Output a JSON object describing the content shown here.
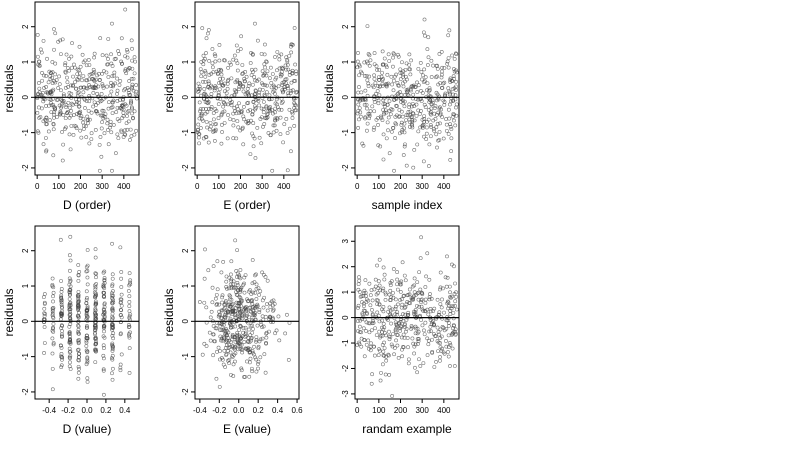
{
  "chart_data": [
    {
      "type": "scatter",
      "xlabel": "D (order)",
      "ylabel": "residuals",
      "xlim": [
        -10,
        470
      ],
      "ylim": [
        -2.2,
        2.7
      ],
      "xticks": [
        "0",
        "100",
        "200",
        "300",
        "400"
      ],
      "xtick_values": [
        0,
        100,
        200,
        300,
        400
      ],
      "yticks": [
        "-2",
        "-1",
        "0",
        "1",
        "2"
      ],
      "ytick_values": [
        -2,
        -1,
        0,
        1,
        2
      ],
      "hline": 0,
      "n_points": 460,
      "x_range": [
        0,
        460
      ],
      "y_spread": 0.72,
      "seed": 11,
      "point_color": "#444444"
    },
    {
      "type": "scatter",
      "xlabel": "E (order)",
      "ylabel": "residuals",
      "xlim": [
        -10,
        470
      ],
      "ylim": [
        -2.2,
        2.7
      ],
      "xticks": [
        "0",
        "100",
        "200",
        "300",
        "400"
      ],
      "xtick_values": [
        0,
        100,
        200,
        300,
        400
      ],
      "yticks": [
        "-2",
        "-1",
        "0",
        "1",
        "2"
      ],
      "ytick_values": [
        -2,
        -1,
        0,
        1,
        2
      ],
      "hline": 0,
      "n_points": 460,
      "x_range": [
        0,
        460
      ],
      "y_spread": 0.72,
      "seed": 23,
      "point_color": "#444444"
    },
    {
      "type": "scatter",
      "xlabel": "sample index",
      "ylabel": "residuals",
      "xlim": [
        -10,
        470
      ],
      "ylim": [
        -2.2,
        2.7
      ],
      "xticks": [
        "0",
        "100",
        "200",
        "300",
        "400"
      ],
      "xtick_values": [
        0,
        100,
        200,
        300,
        400
      ],
      "yticks": [
        "-2",
        "-1",
        "0",
        "1",
        "2"
      ],
      "ytick_values": [
        -2,
        -1,
        0,
        1,
        2
      ],
      "hline": 0,
      "n_points": 460,
      "x_range": [
        0,
        460
      ],
      "y_spread": 0.72,
      "seed": 37,
      "point_color": "#444444"
    },
    {
      "type": "scatter",
      "xlabel": "D (value)",
      "ylabel": "residuals",
      "xlim": [
        -0.55,
        0.55
      ],
      "ylim": [
        -2.2,
        2.7
      ],
      "xticks": [
        "-0.4",
        "-0.2",
        "0.0",
        "0.2",
        "0.4"
      ],
      "xtick_values": [
        -0.4,
        -0.2,
        0.0,
        0.2,
        0.4
      ],
      "yticks": [
        "-2",
        "-1",
        "0",
        "1",
        "2"
      ],
      "ytick_values": [
        -2,
        -1,
        0,
        1,
        2
      ],
      "hline": 0,
      "n_points": 460,
      "x_range": [
        -0.5,
        0.5
      ],
      "x_discrete": [
        -0.45,
        -0.36,
        -0.27,
        -0.18,
        -0.09,
        0.0,
        0.09,
        0.18,
        0.27,
        0.36,
        0.45
      ],
      "y_spread": 0.72,
      "seed": 51,
      "point_color": "#444444"
    },
    {
      "type": "scatter",
      "xlabel": "E (value)",
      "ylabel": "residuals",
      "xlim": [
        -0.45,
        0.62
      ],
      "ylim": [
        -2.2,
        2.7
      ],
      "xticks": [
        "-0.4",
        "-0.2",
        "0.0",
        "0.2",
        "0.4",
        "0.6"
      ],
      "xtick_values": [
        -0.4,
        -0.2,
        0.0,
        0.2,
        0.4,
        0.6
      ],
      "yticks": [
        "-2",
        "-1",
        "0",
        "1",
        "2"
      ],
      "ytick_values": [
        -2,
        -1,
        0,
        1,
        2
      ],
      "hline": 0,
      "n_points": 460,
      "x_range": [
        -0.4,
        0.6
      ],
      "x_center": -0.1,
      "x_skew": true,
      "y_spread": 0.72,
      "seed": 67,
      "point_color": "#444444"
    },
    {
      "type": "scatter",
      "xlabel": "randam example",
      "ylabel": "residuals",
      "xlim": [
        -10,
        470
      ],
      "ylim": [
        -3.2,
        3.6
      ],
      "xticks": [
        "0",
        "100",
        "200",
        "300",
        "400"
      ],
      "xtick_values": [
        0,
        100,
        200,
        300,
        400
      ],
      "yticks": [
        "-3",
        "-2",
        "-1",
        "0",
        "1",
        "2",
        "3"
      ],
      "ytick_values": [
        -3,
        -2,
        -1,
        0,
        1,
        2,
        3
      ],
      "hline": 0,
      "n_points": 460,
      "x_range": [
        0,
        460
      ],
      "y_spread": 1.0,
      "seed": 83,
      "point_color": "#444444"
    }
  ]
}
